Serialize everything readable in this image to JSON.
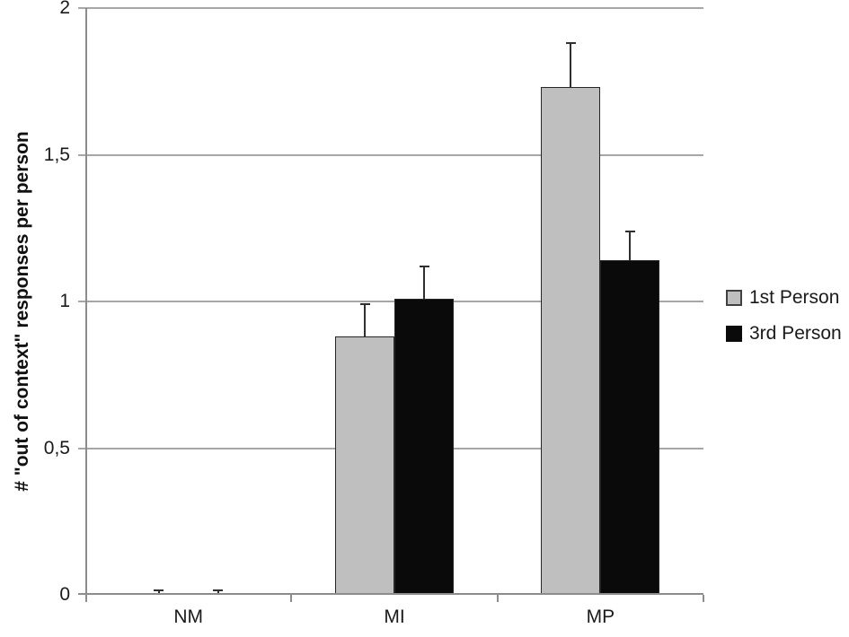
{
  "figure": {
    "background": "#ffffff"
  },
  "chart_data": {
    "type": "bar",
    "title": "",
    "xlabel": "",
    "ylabel": "# \"out of context\" responses per person",
    "categories": [
      "NM",
      "MI",
      "MP"
    ],
    "series": [
      {
        "name": "1st Person",
        "color": "#bfbfbf",
        "values": [
          0.005,
          0.88,
          1.73
        ],
        "errors": [
          0.01,
          0.11,
          0.15
        ]
      },
      {
        "name": "3rd Person",
        "color": "#0a0a0a",
        "values": [
          0.005,
          1.01,
          1.14
        ],
        "errors": [
          0.01,
          0.11,
          0.1
        ]
      }
    ],
    "ylim": [
      0,
      2
    ],
    "yticks": [
      {
        "value": 0,
        "label": "0"
      },
      {
        "value": 0.5,
        "label": "0,5"
      },
      {
        "value": 1,
        "label": "1"
      },
      {
        "value": 1.5,
        "label": "1,5"
      },
      {
        "value": 2,
        "label": "2"
      }
    ],
    "grid": "horizontal",
    "legend_position": "right",
    "decimal_separator": ",",
    "bar_border_color": "#262626",
    "error_bar_color": "#303030",
    "gridline_color": "#a6a6a6",
    "axis_color": "#8c8c8c"
  }
}
